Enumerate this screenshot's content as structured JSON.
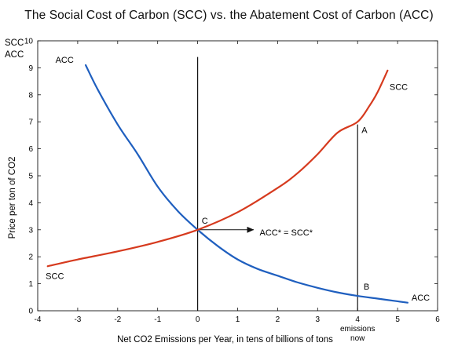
{
  "chart_data": {
    "type": "line",
    "title": "The Social Cost of Carbon (SCC) vs. the Abatement Cost of Carbon (ACC)",
    "xlabel": "Net CO2 Emissions per Year, in tens of billions of tons",
    "ylabel": "Price per ton of CO2",
    "y_axis_corner_label_1": "SCC",
    "y_axis_corner_label_2": "ACC",
    "xlim": [
      -4,
      6
    ],
    "ylim": [
      0,
      10
    ],
    "x_ticks": [
      -4,
      -3,
      -2,
      -1,
      0,
      1,
      2,
      3,
      4,
      5,
      6
    ],
    "y_ticks": [
      0,
      1,
      2,
      3,
      4,
      5,
      6,
      7,
      8,
      9,
      10
    ],
    "grid": false,
    "series": [
      {
        "name": "ACC",
        "color": "#1f5fbf",
        "x": [
          -2.8,
          -2.5,
          -2.0,
          -1.5,
          -1.0,
          -0.5,
          0.0,
          0.5,
          1.0,
          1.5,
          2.0,
          2.5,
          3.0,
          3.5,
          4.0,
          4.5,
          5.0,
          5.25
        ],
        "y": [
          9.1,
          8.2,
          6.9,
          5.8,
          4.6,
          3.7,
          3.0,
          2.4,
          1.9,
          1.55,
          1.3,
          1.05,
          0.85,
          0.68,
          0.55,
          0.45,
          0.35,
          0.3
        ]
      },
      {
        "name": "SCC",
        "color": "#d63a1e",
        "x": [
          -3.75,
          -3.0,
          -2.0,
          -1.0,
          0.0,
          1.0,
          2.0,
          2.5,
          3.0,
          3.5,
          4.0,
          4.3,
          4.5,
          4.75
        ],
        "y": [
          1.65,
          1.9,
          2.2,
          2.55,
          3.0,
          3.65,
          4.55,
          5.1,
          5.8,
          6.6,
          7.0,
          7.6,
          8.1,
          8.9
        ]
      }
    ],
    "vertical_lines": [
      {
        "x": 0,
        "y_from": 0,
        "y_to": 9.4
      },
      {
        "x": 4,
        "y_from": 0,
        "y_to": 6.9
      }
    ],
    "arrow": {
      "x_from": 0,
      "x_to": 1.4,
      "y": 3.0
    },
    "annotations": [
      {
        "text": "ACC",
        "x": -3.1,
        "y": 9.3,
        "anchor": "end"
      },
      {
        "text": "SCC",
        "x": 4.8,
        "y": 8.3,
        "anchor": "start"
      },
      {
        "text": "SCC",
        "x": -3.8,
        "y": 1.3,
        "anchor": "start"
      },
      {
        "text": "ACC",
        "x": 5.35,
        "y": 0.5,
        "anchor": "start"
      },
      {
        "text": "A",
        "x": 4.1,
        "y": 6.7,
        "anchor": "start"
      },
      {
        "text": "B",
        "x": 4.15,
        "y": 0.9,
        "anchor": "start"
      },
      {
        "text": "C",
        "x": 0.1,
        "y": 3.35,
        "anchor": "start"
      },
      {
        "text": "ACC* = SCC*",
        "x": 1.55,
        "y": 2.9,
        "anchor": "start"
      }
    ],
    "x_extra_label_1": "emissions",
    "x_extra_label_2": "now",
    "x_extra_label_at": 4
  }
}
